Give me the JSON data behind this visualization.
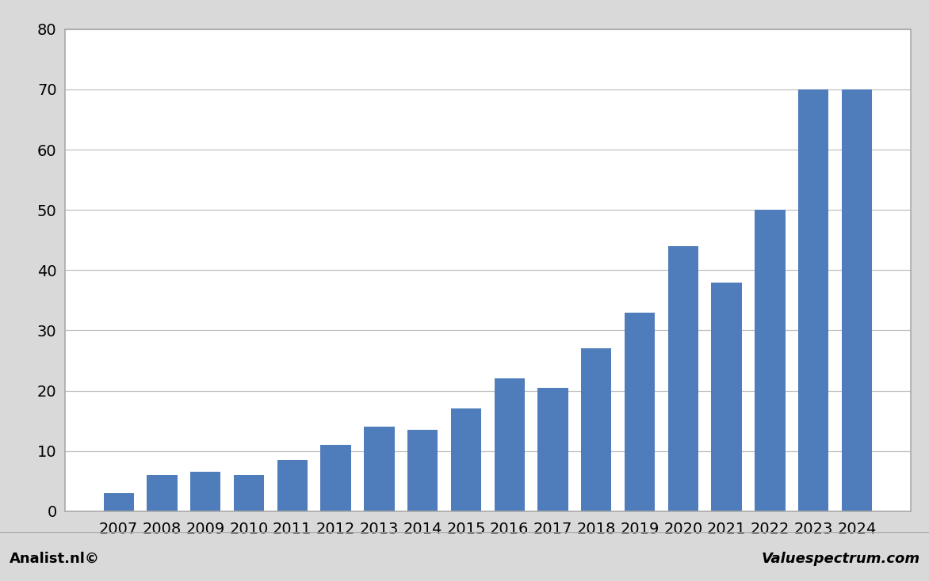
{
  "categories": [
    2007,
    2008,
    2009,
    2010,
    2011,
    2012,
    2013,
    2014,
    2015,
    2016,
    2017,
    2018,
    2019,
    2020,
    2021,
    2022,
    2023,
    2024
  ],
  "values": [
    3,
    6,
    6.5,
    6,
    8.5,
    11,
    14,
    13.5,
    17,
    22,
    20.5,
    27,
    33,
    44,
    38,
    50,
    70,
    70
  ],
  "bar_color": "#4f7cba",
  "outer_bg_color": "#d9d9d9",
  "plot_bg_color": "#ffffff",
  "ylim": [
    0,
    80
  ],
  "yticks": [
    0,
    10,
    20,
    30,
    40,
    50,
    60,
    70,
    80
  ],
  "footer_left": "Analist.nl©",
  "footer_right": "Valuespectrum.com",
  "footer_fontsize": 13,
  "grid_color": "#c0c0c0",
  "tick_fontsize": 14,
  "bar_width": 0.7
}
